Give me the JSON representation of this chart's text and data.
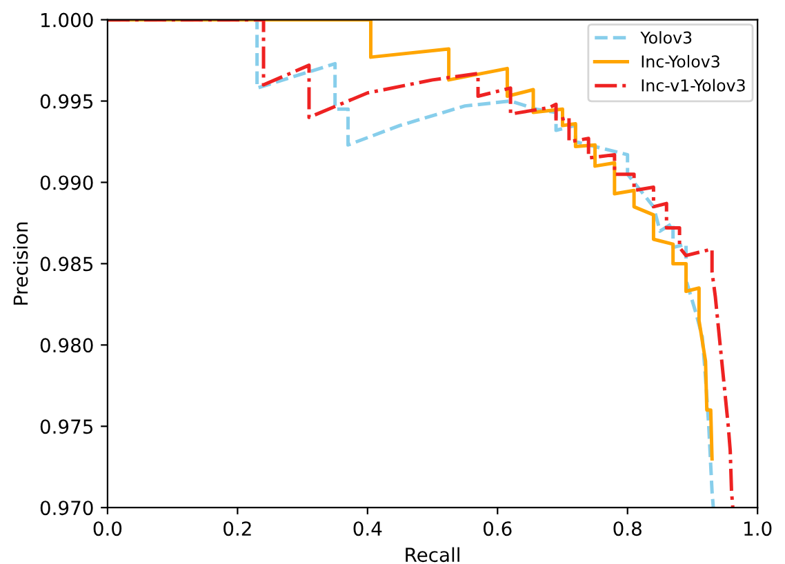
{
  "chart_data": {
    "type": "line",
    "xlabel": "Recall",
    "ylabel": "Precision",
    "xlim": [
      0.0,
      1.0
    ],
    "ylim": [
      0.97,
      1.0
    ],
    "xticks": [
      {
        "value": 0,
        "label": "0.0"
      },
      {
        "value": 0.2,
        "label": "0.2"
      },
      {
        "value": 0.4,
        "label": "0.4"
      },
      {
        "value": 0.6,
        "label": "0.6"
      },
      {
        "value": 0.8,
        "label": "0.8"
      },
      {
        "value": 1,
        "label": "1.0"
      }
    ],
    "yticks": [
      {
        "value": 0.97,
        "label": "0.970"
      },
      {
        "value": 0.975,
        "label": "0.975"
      },
      {
        "value": 0.98,
        "label": "0.980"
      },
      {
        "value": 0.985,
        "label": "0.985"
      },
      {
        "value": 0.99,
        "label": "0.990"
      },
      {
        "value": 0.995,
        "label": "0.995"
      },
      {
        "value": 1.0,
        "label": "1.000"
      }
    ],
    "grid": false,
    "legend": "top right",
    "series": [
      {
        "name": "Yolov3",
        "color": "#87ceeb",
        "line_style": "dashed",
        "x": [
          0,
          0.23,
          0.23,
          0.35,
          0.35,
          0.37,
          0.37,
          0.45,
          0.55,
          0.62,
          0.66,
          0.69,
          0.69,
          0.72,
          0.72,
          0.76,
          0.8,
          0.8,
          0.82,
          0.84,
          0.85,
          0.87,
          0.87,
          0.89,
          0.89,
          0.905,
          0.915,
          0.92,
          0.925,
          0.93,
          0.932
        ],
        "values": [
          1.0,
          1.0,
          0.9958,
          0.9973,
          0.9945,
          0.9945,
          0.9923,
          0.9935,
          0.9947,
          0.995,
          0.9945,
          0.9943,
          0.9932,
          0.9935,
          0.9925,
          0.9921,
          0.9917,
          0.9905,
          0.9895,
          0.9885,
          0.987,
          0.9875,
          0.986,
          0.9862,
          0.984,
          0.982,
          0.9805,
          0.978,
          0.975,
          0.971,
          0.97
        ]
      },
      {
        "name": "Inc-Yolov3",
        "color": "#ffa500",
        "line_style": "solid",
        "x": [
          0,
          0.405,
          0.405,
          0.525,
          0.525,
          0.615,
          0.615,
          0.655,
          0.655,
          0.7,
          0.7,
          0.72,
          0.72,
          0.75,
          0.75,
          0.78,
          0.78,
          0.81,
          0.81,
          0.84,
          0.84,
          0.87,
          0.87,
          0.89,
          0.89,
          0.91,
          0.91,
          0.92,
          0.922,
          0.928,
          0.93
        ],
        "values": [
          1.0,
          1.0,
          0.9977,
          0.9982,
          0.9963,
          0.997,
          0.9953,
          0.9957,
          0.9943,
          0.9945,
          0.9935,
          0.9936,
          0.9922,
          0.9923,
          0.991,
          0.9912,
          0.9893,
          0.9895,
          0.9885,
          0.988,
          0.9865,
          0.9862,
          0.985,
          0.985,
          0.9833,
          0.9835,
          0.9815,
          0.979,
          0.976,
          0.976,
          0.973
        ]
      },
      {
        "name": "Inc-v1-Yolov3",
        "color": "#ee2222",
        "line_style": "dashdot",
        "x": [
          0,
          0.24,
          0.24,
          0.31,
          0.31,
          0.4,
          0.5,
          0.57,
          0.57,
          0.62,
          0.62,
          0.68,
          0.69,
          0.69,
          0.71,
          0.71,
          0.74,
          0.74,
          0.78,
          0.78,
          0.81,
          0.81,
          0.84,
          0.84,
          0.86,
          0.86,
          0.88,
          0.88,
          0.89,
          0.93,
          0.93,
          0.935,
          0.94,
          0.945,
          0.95,
          0.955,
          0.958,
          0.96,
          0.962
        ],
        "values": [
          1.0,
          1.0,
          0.996,
          0.9972,
          0.994,
          0.9955,
          0.9963,
          0.9967,
          0.9953,
          0.9958,
          0.9942,
          0.9946,
          0.9948,
          0.9938,
          0.994,
          0.9925,
          0.9927,
          0.9915,
          0.9917,
          0.9905,
          0.9905,
          0.9895,
          0.9897,
          0.9885,
          0.9887,
          0.9872,
          0.9872,
          0.986,
          0.9855,
          0.9859,
          0.9845,
          0.983,
          0.981,
          0.979,
          0.977,
          0.975,
          0.9735,
          0.971,
          0.97
        ]
      }
    ]
  }
}
